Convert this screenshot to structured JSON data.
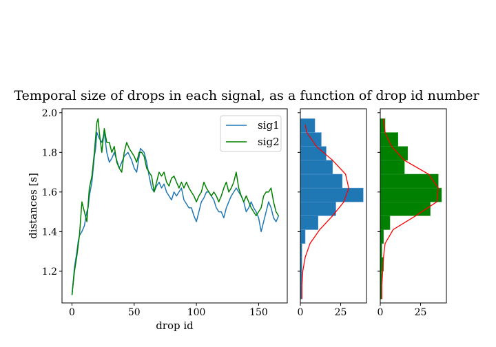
{
  "title": "Temporal size of drops in each signal, as a function of drop id number",
  "colors": {
    "sig1": "#1f77b4",
    "sig2": "#008000",
    "fit": "#ff0000",
    "axis": "#000000"
  },
  "chart_data": [
    {
      "type": "line",
      "xlabel": "drop id",
      "ylabel": "distances [s]",
      "xlim": [
        -8,
        173
      ],
      "ylim": [
        1.04,
        2.02
      ],
      "xticks": [
        0,
        50,
        100,
        150
      ],
      "yticks": [
        1.2,
        1.4,
        1.6,
        1.8,
        2.0
      ],
      "legend_position": "top-right",
      "grid": false,
      "series": [
        {
          "name": "sig1",
          "color": "#1f77b4",
          "points": [
            [
              0,
              1.08
            ],
            [
              2,
              1.22
            ],
            [
              4,
              1.3
            ],
            [
              5,
              1.35
            ],
            [
              6,
              1.38
            ],
            [
              8,
              1.4
            ],
            [
              10,
              1.43
            ],
            [
              12,
              1.5
            ],
            [
              13,
              1.52
            ],
            [
              14,
              1.58
            ],
            [
              16,
              1.65
            ],
            [
              18,
              1.78
            ],
            [
              19,
              1.82
            ],
            [
              20,
              1.9
            ],
            [
              22,
              1.87
            ],
            [
              24,
              1.85
            ],
            [
              26,
              1.9
            ],
            [
              28,
              1.8
            ],
            [
              30,
              1.75
            ],
            [
              32,
              1.77
            ],
            [
              34,
              1.8
            ],
            [
              36,
              1.76
            ],
            [
              38,
              1.72
            ],
            [
              40,
              1.75
            ],
            [
              42,
              1.78
            ],
            [
              45,
              1.8
            ],
            [
              48,
              1.76
            ],
            [
              50,
              1.72
            ],
            [
              52,
              1.7
            ],
            [
              55,
              1.82
            ],
            [
              58,
              1.8
            ],
            [
              60,
              1.75
            ],
            [
              62,
              1.68
            ],
            [
              64,
              1.62
            ],
            [
              66,
              1.6
            ],
            [
              68,
              1.63
            ],
            [
              70,
              1.65
            ],
            [
              72,
              1.62
            ],
            [
              74,
              1.64
            ],
            [
              76,
              1.6
            ],
            [
              78,
              1.58
            ],
            [
              80,
              1.56
            ],
            [
              82,
              1.6
            ],
            [
              84,
              1.58
            ],
            [
              86,
              1.6
            ],
            [
              88,
              1.62
            ],
            [
              90,
              1.56
            ],
            [
              92,
              1.54
            ],
            [
              94,
              1.52
            ],
            [
              96,
              1.52
            ],
            [
              98,
              1.48
            ],
            [
              100,
              1.45
            ],
            [
              102,
              1.5
            ],
            [
              104,
              1.55
            ],
            [
              106,
              1.57
            ],
            [
              108,
              1.6
            ],
            [
              110,
              1.6
            ],
            [
              112,
              1.58
            ],
            [
              114,
              1.56
            ],
            [
              116,
              1.52
            ],
            [
              118,
              1.5
            ],
            [
              120,
              1.5
            ],
            [
              122,
              1.47
            ],
            [
              124,
              1.52
            ],
            [
              126,
              1.55
            ],
            [
              128,
              1.58
            ],
            [
              130,
              1.6
            ],
            [
              132,
              1.62
            ],
            [
              134,
              1.6
            ],
            [
              136,
              1.58
            ],
            [
              138,
              1.55
            ],
            [
              140,
              1.5
            ],
            [
              142,
              1.52
            ],
            [
              144,
              1.55
            ],
            [
              146,
              1.52
            ],
            [
              148,
              1.5
            ],
            [
              150,
              1.47
            ],
            [
              152,
              1.4
            ],
            [
              154,
              1.45
            ],
            [
              156,
              1.5
            ],
            [
              158,
              1.55
            ],
            [
              160,
              1.52
            ],
            [
              162,
              1.47
            ],
            [
              164,
              1.45
            ],
            [
              166,
              1.48
            ]
          ]
        },
        {
          "name": "sig2",
          "color": "#008000",
          "points": [
            [
              0,
              1.08
            ],
            [
              2,
              1.2
            ],
            [
              4,
              1.28
            ],
            [
              6,
              1.38
            ],
            [
              8,
              1.55
            ],
            [
              10,
              1.5
            ],
            [
              12,
              1.45
            ],
            [
              14,
              1.62
            ],
            [
              16,
              1.68
            ],
            [
              18,
              1.8
            ],
            [
              20,
              1.95
            ],
            [
              21,
              1.97
            ],
            [
              22,
              1.9
            ],
            [
              24,
              1.8
            ],
            [
              26,
              1.92
            ],
            [
              28,
              1.85
            ],
            [
              30,
              1.85
            ],
            [
              32,
              1.8
            ],
            [
              34,
              1.83
            ],
            [
              36,
              1.75
            ],
            [
              38,
              1.72
            ],
            [
              40,
              1.7
            ],
            [
              42,
              1.8
            ],
            [
              44,
              1.85
            ],
            [
              46,
              1.82
            ],
            [
              48,
              1.8
            ],
            [
              50,
              1.78
            ],
            [
              52,
              1.75
            ],
            [
              54,
              1.8
            ],
            [
              56,
              1.8
            ],
            [
              58,
              1.78
            ],
            [
              60,
              1.72
            ],
            [
              62,
              1.7
            ],
            [
              64,
              1.68
            ],
            [
              66,
              1.6
            ],
            [
              68,
              1.65
            ],
            [
              70,
              1.7
            ],
            [
              72,
              1.68
            ],
            [
              74,
              1.7
            ],
            [
              76,
              1.65
            ],
            [
              78,
              1.63
            ],
            [
              80,
              1.67
            ],
            [
              82,
              1.68
            ],
            [
              84,
              1.65
            ],
            [
              86,
              1.62
            ],
            [
              88,
              1.65
            ],
            [
              90,
              1.62
            ],
            [
              92,
              1.65
            ],
            [
              94,
              1.62
            ],
            [
              96,
              1.6
            ],
            [
              98,
              1.58
            ],
            [
              100,
              1.55
            ],
            [
              102,
              1.58
            ],
            [
              104,
              1.6
            ],
            [
              106,
              1.65
            ],
            [
              108,
              1.62
            ],
            [
              110,
              1.6
            ],
            [
              112,
              1.58
            ],
            [
              114,
              1.6
            ],
            [
              116,
              1.58
            ],
            [
              118,
              1.55
            ],
            [
              120,
              1.58
            ],
            [
              122,
              1.62
            ],
            [
              124,
              1.65
            ],
            [
              126,
              1.6
            ],
            [
              128,
              1.62
            ],
            [
              130,
              1.65
            ],
            [
              132,
              1.7
            ],
            [
              134,
              1.62
            ],
            [
              136,
              1.58
            ],
            [
              138,
              1.55
            ],
            [
              140,
              1.58
            ],
            [
              142,
              1.55
            ],
            [
              144,
              1.52
            ],
            [
              146,
              1.5
            ],
            [
              148,
              1.48
            ],
            [
              150,
              1.5
            ],
            [
              152,
              1.52
            ],
            [
              154,
              1.58
            ],
            [
              156,
              1.6
            ],
            [
              158,
              1.6
            ],
            [
              160,
              1.62
            ],
            [
              162,
              1.55
            ],
            [
              164,
              1.5
            ],
            [
              166,
              1.48
            ]
          ]
        }
      ]
    },
    {
      "type": "bar",
      "orientation": "horizontal",
      "xlim": [
        0,
        41
      ],
      "xticks": [
        0,
        25
      ],
      "ylim": [
        1.04,
        2.02
      ],
      "color": "#1f77b4",
      "bin_edges": [
        1.06,
        1.13,
        1.2,
        1.27,
        1.34,
        1.41,
        1.48,
        1.55,
        1.62,
        1.69,
        1.76,
        1.83,
        1.9,
        1.97
      ],
      "counts": [
        1,
        1,
        1,
        1,
        3,
        11,
        22,
        39,
        26,
        20,
        16,
        13,
        9
      ],
      "fit_curve": {
        "y": [
          1.06,
          1.13,
          1.2,
          1.27,
          1.34,
          1.41,
          1.48,
          1.55,
          1.62,
          1.69,
          1.76,
          1.83,
          1.9,
          1.94
        ],
        "x": [
          1,
          1,
          1.5,
          3,
          6,
          12,
          20,
          27,
          30,
          28,
          20,
          10,
          4,
          3
        ]
      }
    },
    {
      "type": "bar",
      "orientation": "horizontal",
      "xlim": [
        0,
        41
      ],
      "xticks": [
        0,
        25
      ],
      "ylim": [
        1.04,
        2.02
      ],
      "color": "#008000",
      "bin_edges": [
        1.06,
        1.13,
        1.2,
        1.27,
        1.34,
        1.41,
        1.48,
        1.55,
        1.62,
        1.69,
        1.76,
        1.83,
        1.9,
        1.97
      ],
      "counts": [
        1,
        1,
        2,
        1,
        2,
        6,
        31,
        38,
        36,
        15,
        17,
        11,
        3
      ],
      "fit_curve": {
        "y": [
          1.06,
          1.13,
          1.2,
          1.27,
          1.34,
          1.41,
          1.48,
          1.55,
          1.62,
          1.69,
          1.76,
          1.83,
          1.9,
          1.97
        ],
        "x": [
          1,
          1,
          1.5,
          2,
          3,
          8,
          22,
          35,
          36,
          30,
          15,
          7,
          3,
          2
        ]
      }
    }
  ]
}
